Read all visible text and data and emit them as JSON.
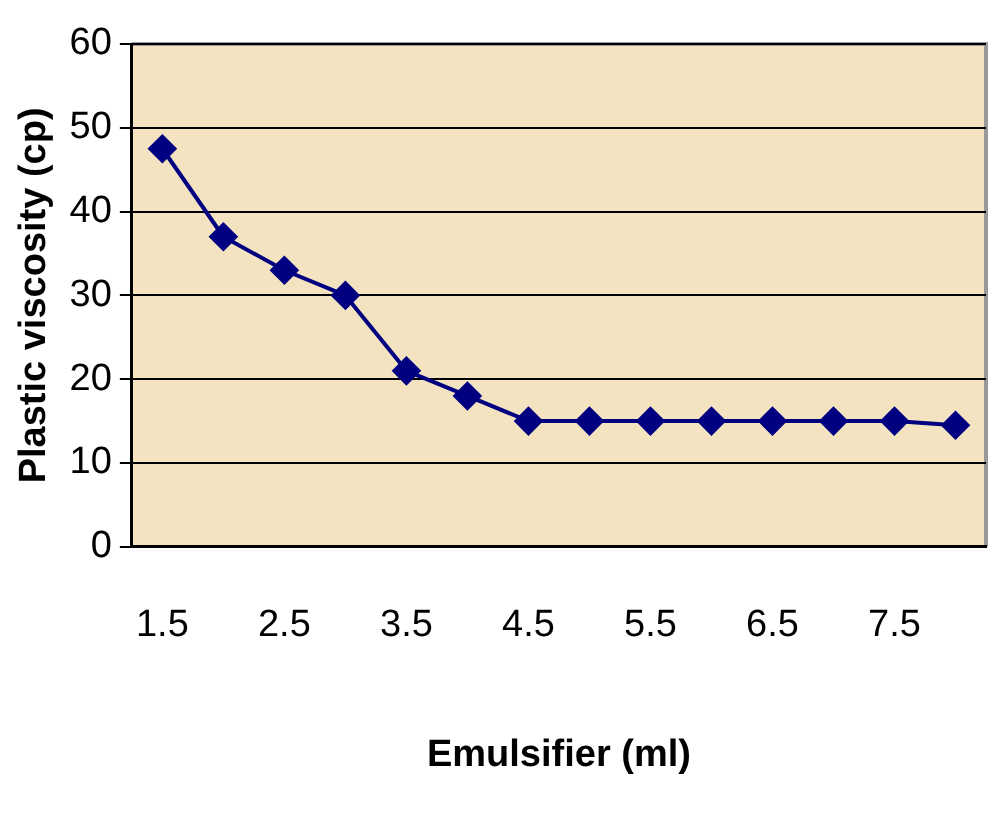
{
  "chart_data": {
    "type": "line",
    "xlabel": "Emulsifier (ml)",
    "ylabel": "Plastic viscosity (cp)",
    "categories": [
      "1.5",
      null,
      "2.5",
      null,
      "3.5",
      null,
      "4.5",
      null,
      "5.5",
      null,
      "6.5",
      null,
      "7.5",
      null
    ],
    "series": [
      {
        "color": "#000080",
        "values": [
          47.5,
          37,
          33,
          30,
          21,
          18,
          15,
          15,
          15,
          15,
          15,
          15,
          15,
          14.5
        ]
      }
    ],
    "ylim": [
      0,
      60
    ],
    "yticks": [
      0,
      10,
      20,
      30,
      40,
      50,
      60
    ],
    "grid": "y",
    "legend": false,
    "marker": "diamond",
    "line_style": "solid"
  }
}
